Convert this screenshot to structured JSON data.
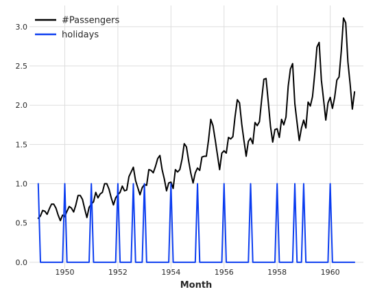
{
  "chart_data": {
    "type": "line",
    "title": "",
    "xlabel": "Month",
    "ylabel": "",
    "xlim": [
      1948.67,
      1961.25
    ],
    "ylim": [
      -0.08,
      3.27
    ],
    "x_ticks": [
      1950,
      1952,
      1954,
      1956,
      1958,
      1960
    ],
    "x_tick_labels": [
      "1950",
      "1952",
      "1954",
      "1956",
      "1958",
      "1960"
    ],
    "y_ticks": [
      0.0,
      0.5,
      1.0,
      1.5,
      2.0,
      2.5,
      3.0
    ],
    "y_tick_labels": [
      "0.0",
      "0.5",
      "1.0",
      "1.5",
      "2.0",
      "2.5",
      "3.0"
    ],
    "grid": true,
    "legend_position": "top-left",
    "series": [
      {
        "name": "#Passengers",
        "color": "#000000",
        "x_start": 1949.0,
        "x_step": 0.0833333,
        "values": [
          0.56,
          0.59,
          0.66,
          0.65,
          0.61,
          0.68,
          0.74,
          0.74,
          0.69,
          0.6,
          0.53,
          0.6,
          0.58,
          0.65,
          0.71,
          0.69,
          0.64,
          0.73,
          0.85,
          0.85,
          0.8,
          0.68,
          0.57,
          0.7,
          0.74,
          0.77,
          0.89,
          0.82,
          0.87,
          0.89,
          1.0,
          1.0,
          0.93,
          0.82,
          0.73,
          0.82,
          0.86,
          0.89,
          0.97,
          0.91,
          0.92,
          1.09,
          1.15,
          1.21,
          1.04,
          0.95,
          0.86,
          0.95,
          0.99,
          0.98,
          1.18,
          1.17,
          1.14,
          1.22,
          1.32,
          1.36,
          1.18,
          1.06,
          0.91,
          1.01,
          1.02,
          0.94,
          1.18,
          1.15,
          1.18,
          1.31,
          1.51,
          1.47,
          1.29,
          1.13,
          1.01,
          1.14,
          1.2,
          1.17,
          1.34,
          1.35,
          1.35,
          1.56,
          1.82,
          1.74,
          1.56,
          1.37,
          1.18,
          1.39,
          1.42,
          1.39,
          1.59,
          1.57,
          1.6,
          1.86,
          2.07,
          2.03,
          1.76,
          1.55,
          1.35,
          1.54,
          1.58,
          1.51,
          1.78,
          1.74,
          1.79,
          2.07,
          2.33,
          2.34,
          2.04,
          1.73,
          1.53,
          1.69,
          1.7,
          1.59,
          1.82,
          1.75,
          1.85,
          2.24,
          2.46,
          2.53,
          2.02,
          1.78,
          1.55,
          1.71,
          1.81,
          1.71,
          2.04,
          1.99,
          2.11,
          2.4,
          2.74,
          2.8,
          2.32,
          2.07,
          1.81,
          2.03,
          2.1,
          1.96,
          2.1,
          2.32,
          2.36,
          2.69,
          3.11,
          3.05,
          2.55,
          2.27,
          1.95,
          2.17
        ]
      },
      {
        "name": "holidays",
        "color": "#0a3cf0",
        "x_start": 1949.0,
        "x_step": 0.0833333,
        "values": [
          1,
          0,
          0,
          0,
          0,
          0,
          0,
          0,
          0,
          0,
          0,
          0,
          1,
          0,
          0,
          0,
          0,
          0,
          0,
          0,
          0,
          0,
          0,
          0,
          1,
          0,
          0,
          0,
          0,
          0,
          0,
          0,
          0,
          0,
          0,
          0,
          1,
          0,
          0,
          0,
          0,
          0,
          0,
          1,
          0,
          0,
          0,
          0,
          1,
          0,
          0,
          0,
          0,
          0,
          0,
          0,
          0,
          0,
          0,
          0,
          1,
          0,
          0,
          0,
          0,
          0,
          0,
          0,
          0,
          0,
          0,
          0,
          1,
          0,
          0,
          0,
          0,
          0,
          0,
          0,
          0,
          0,
          0,
          0,
          1,
          0,
          0,
          0,
          0,
          0,
          0,
          0,
          0,
          0,
          0,
          0,
          1,
          0,
          0,
          0,
          0,
          0,
          0,
          0,
          0,
          0,
          0,
          0,
          1,
          0,
          0,
          0,
          0,
          0,
          0,
          0,
          1,
          0,
          0,
          0,
          1,
          0,
          0,
          0,
          0,
          0,
          0,
          0,
          0,
          0,
          0,
          0,
          1,
          0,
          0,
          0,
          0,
          0,
          0,
          0,
          0,
          0,
          0,
          0
        ]
      }
    ]
  }
}
